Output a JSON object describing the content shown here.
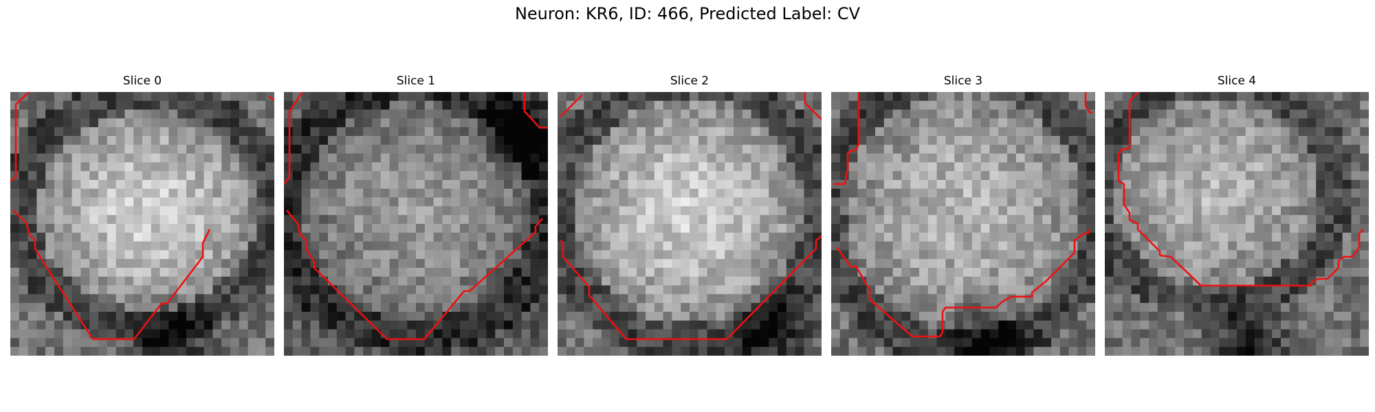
{
  "figure": {
    "title": "Neuron: KR6, ID: 466, Predicted Label: CV"
  },
  "panels": [
    {
      "title": "Slice 0"
    },
    {
      "title": "Slice 1"
    },
    {
      "title": "Slice 2"
    },
    {
      "title": "Slice 3"
    },
    {
      "title": "Slice 4"
    }
  ],
  "colors": {
    "contour": "#ee1111"
  }
}
